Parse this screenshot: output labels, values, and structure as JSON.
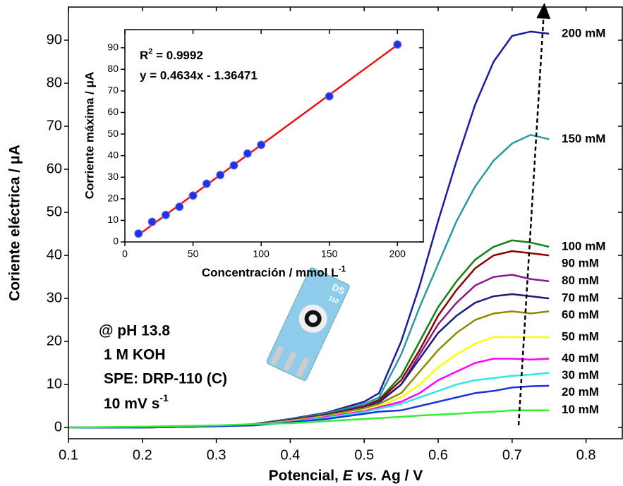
{
  "chart_data": [
    {
      "type": "line",
      "x_label": [
        "Potencial, ",
        "E vs.",
        " Ag / V"
      ],
      "y_label": "Coriente eléctrica / μA",
      "x": [
        0.1,
        0.2,
        0.3,
        0.35,
        0.4,
        0.45,
        0.5,
        0.52,
        0.55,
        0.575,
        0.6,
        0.625,
        0.65,
        0.675,
        0.7,
        0.725,
        0.75
      ],
      "xlim": [
        0.1,
        0.849
      ],
      "ylim": [
        -2.6,
        97.7
      ],
      "xticks": [
        0.1,
        0.2,
        0.3,
        0.4,
        0.5,
        0.6,
        0.7,
        0.8
      ],
      "yticks": [
        0,
        10,
        20,
        30,
        40,
        50,
        60,
        70,
        80,
        90
      ],
      "series": [
        {
          "name": "200 mM",
          "color": "#1c1ca0",
          "values": [
            0,
            0,
            0.3,
            0.8,
            2,
            3.5,
            6,
            8,
            20,
            33,
            48,
            62,
            75,
            85,
            91,
            92,
            91.5
          ]
        },
        {
          "name": "150 mM",
          "color": "#2a9a9a",
          "values": [
            0,
            0,
            0.3,
            0.8,
            1.9,
            3.3,
            5.5,
            7,
            17,
            28,
            38,
            48,
            56,
            62,
            66,
            68,
            67
          ]
        },
        {
          "name": "100 mM",
          "color": "#138013",
          "values": [
            0,
            0,
            0.3,
            0.7,
            1.8,
            3.1,
            5,
            6.5,
            12,
            20,
            28,
            34,
            39,
            42,
            43.5,
            43,
            42
          ]
        },
        {
          "name": "90 mM",
          "color": "#8b0000",
          "values": [
            0,
            0,
            0.3,
            0.7,
            1.8,
            3,
            5,
            6.3,
            11,
            18,
            26,
            32,
            37,
            40,
            41,
            40.5,
            40
          ]
        },
        {
          "name": "80 mM",
          "color": "#8b1a8b",
          "values": [
            0,
            0,
            0.3,
            0.7,
            1.7,
            3,
            4.8,
            6,
            10,
            17,
            24,
            29,
            33,
            35,
            35.5,
            34.5,
            34
          ]
        },
        {
          "name": "70 mM",
          "color": "#1a1a80",
          "values": [
            0,
            0,
            0.3,
            0.7,
            1.7,
            2.9,
            4.7,
            5.8,
            10,
            16,
            22,
            26,
            29,
            30.5,
            31,
            30.5,
            30
          ]
        },
        {
          "name": "60 mM",
          "color": "#8b8b00",
          "values": [
            0,
            0,
            0.3,
            0.6,
            1.6,
            2.8,
            4.5,
            5.5,
            8,
            13,
            18,
            22,
            25,
            26.5,
            27,
            26.5,
            27
          ]
        },
        {
          "name": "50 mM",
          "color": "#ffff00",
          "values": [
            0,
            0,
            0.3,
            0.6,
            1.5,
            2.6,
            4,
            5,
            7,
            10,
            14,
            17,
            19.5,
            21,
            21,
            21,
            21
          ]
        },
        {
          "name": "40 mM",
          "color": "#ff00ff",
          "values": [
            0,
            0,
            0.3,
            0.6,
            1.4,
            2.5,
            3.8,
            4.7,
            6,
            8,
            11,
            13,
            15,
            16,
            16,
            15.8,
            16
          ]
        },
        {
          "name": "30 mM",
          "color": "#33e6e6",
          "values": [
            0,
            0,
            0.3,
            0.6,
            1.3,
            2.3,
            3.6,
            4.4,
            5.5,
            7,
            8.5,
            10,
            11,
            11.5,
            12,
            12.3,
            12.7
          ]
        },
        {
          "name": "20 mM",
          "color": "#1a33dd",
          "values": [
            0,
            0,
            0.3,
            0.5,
            1.2,
            2,
            3.2,
            3.7,
            4,
            5,
            6,
            7,
            8,
            8.5,
            9.3,
            9.6,
            9.7
          ]
        },
        {
          "name": "10 mM",
          "color": "#33ee33",
          "values": [
            0,
            0.2,
            0.5,
            0.8,
            1,
            1.5,
            2,
            2.2,
            2.5,
            2.8,
            3,
            3.2,
            3.5,
            3.7,
            4,
            4,
            4
          ]
        }
      ],
      "annotations": [
        "@ pH 13.8",
        "1 M KOH",
        "SPE: DRP-110 (C)",
        "10 mV s",
        "-1"
      ]
    },
    {
      "type": "scatter",
      "x_label": [
        "Concentración / mmol L",
        "-1"
      ],
      "y_label": "Corriente máxima / μA",
      "x": [
        10,
        20,
        30,
        40,
        50,
        60,
        70,
        80,
        90,
        100,
        150,
        200
      ],
      "values": [
        3.9,
        9.3,
        12.5,
        16.3,
        21.5,
        27,
        31,
        35.5,
        41,
        45,
        67.5,
        91.5
      ],
      "color": "#2233dd",
      "xlim": [
        0,
        219
      ],
      "ylim": [
        0,
        98.4
      ],
      "xticks": [
        0,
        50,
        100,
        150,
        200
      ],
      "yticks": [
        0,
        10,
        20,
        30,
        40,
        50,
        60,
        70,
        80,
        90
      ],
      "r2_label": [
        "R",
        "2",
        " = 0.9992"
      ],
      "fit": {
        "slope": 0.4634,
        "intercept": -1.36471,
        "label": "y = 0.4634x - 1.36471",
        "color": "#ee1111"
      }
    }
  ],
  "electrode_image": {
    "brand": "DS",
    "model": "110"
  }
}
